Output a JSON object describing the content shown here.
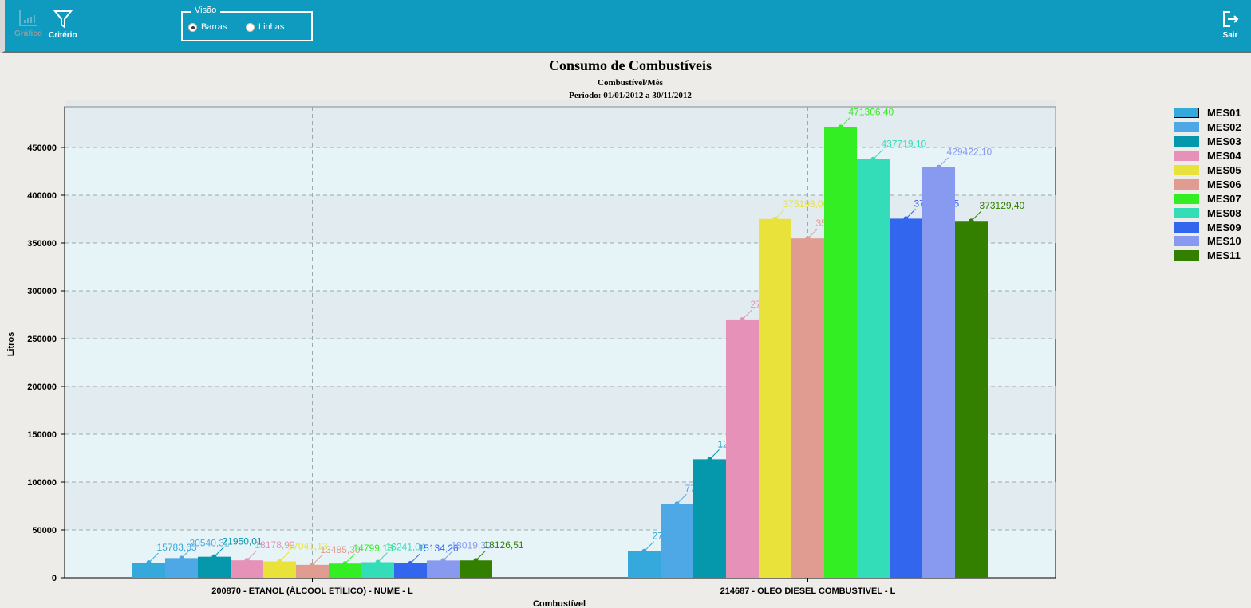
{
  "toolbar": {
    "grafico_label": "Gráfico",
    "criterio_label": "Critério",
    "sair_label": "Sair",
    "visao": {
      "legend": "Visão",
      "options": [
        "Barras",
        "Linhas"
      ],
      "selected": "Barras"
    }
  },
  "colors": {
    "toolbar": "#0e9bbf"
  },
  "chart_data": {
    "type": "bar",
    "title": "Consumo de Combustíveis",
    "subtitle": "Combustível/Mês",
    "period": "Período: 01/01/2012 a 30/11/2012",
    "xlabel": "Combustível",
    "ylabel": "Litros",
    "ylim": [
      0,
      492500
    ],
    "yticks": [
      0,
      50000,
      100000,
      150000,
      200000,
      250000,
      300000,
      350000,
      400000,
      450000
    ],
    "grid": true,
    "legend_position": "right",
    "categories": [
      "200870 - ETANOL (ÁLCOOL ETÍLICO) - NUME - L",
      "214687 - OLEO DIESEL COMBUSTIVEL - L"
    ],
    "series": [
      {
        "name": "MES01",
        "color": "#35a8dc",
        "values": [
          15783.63,
          27718.6
        ],
        "labels": [
          "15783,63",
          "27718,60"
        ]
      },
      {
        "name": "MES02",
        "color": "#4ea8e6",
        "values": [
          20540.31,
          77328.8
        ],
        "labels": [
          "20540,31",
          "77328,80"
        ]
      },
      {
        "name": "MES03",
        "color": "#0597ab",
        "values": [
          21950.01,
          123841.2
        ],
        "labels": [
          "21950,01",
          "123841,20"
        ]
      },
      {
        "name": "MES04",
        "color": "#e691b8",
        "values": [
          18178.99,
          270039.5
        ],
        "labels": [
          "18178,99",
          "270039,50"
        ]
      },
      {
        "name": "MES05",
        "color": "#e8e23a",
        "values": [
          17041.13,
          375198.0
        ],
        "labels": [
          "17041,13",
          "375198,00"
        ]
      },
      {
        "name": "MES06",
        "color": "#e09c90",
        "values": [
          13485.3,
          354838.1
        ],
        "labels": [
          "13485,30",
          "354838,10"
        ]
      },
      {
        "name": "MES07",
        "color": "#33ee22",
        "values": [
          14799.13,
          471306.4
        ],
        "labels": [
          "14799,13",
          "471306,40"
        ]
      },
      {
        "name": "MES08",
        "color": "#33ddb8",
        "values": [
          16241.04,
          437719.1
        ],
        "labels": [
          "16241,04",
          "437719,10"
        ]
      },
      {
        "name": "MES09",
        "color": "#3366ee",
        "values": [
          15134.26,
          375504.85
        ],
        "labels": [
          "15134,26",
          "375504,85"
        ]
      },
      {
        "name": "MES10",
        "color": "#8899f0",
        "values": [
          18019.3,
          429422.1
        ],
        "labels": [
          "18019,30",
          "429422,10"
        ]
      },
      {
        "name": "MES11",
        "color": "#338000",
        "values": [
          18126.51,
          373129.4
        ],
        "labels": [
          "18126,51",
          "373129,40"
        ]
      }
    ]
  }
}
